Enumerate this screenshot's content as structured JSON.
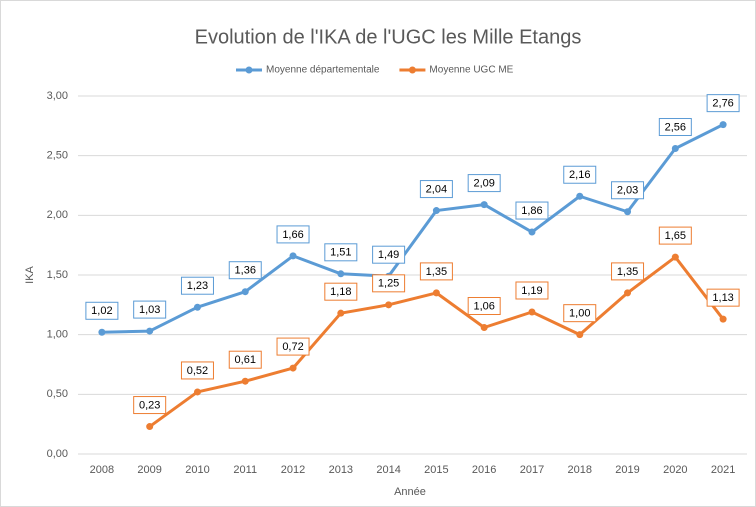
{
  "chart_data": {
    "type": "line",
    "title": "Evolution de l'IKA de l'UGC les Mille Etangs",
    "x_label": "Année",
    "y_label": "IKA",
    "categories": [
      "2008",
      "2009",
      "2010",
      "2011",
      "2012",
      "2013",
      "2014",
      "2015",
      "2016",
      "2017",
      "2018",
      "2019",
      "2020",
      "2021"
    ],
    "series": [
      {
        "name": "Moyenne départementale",
        "color": "#5b9bd5",
        "values": [
          1.02,
          1.03,
          1.23,
          1.36,
          1.66,
          1.51,
          1.49,
          2.04,
          2.09,
          1.86,
          2.16,
          2.03,
          2.56,
          2.76
        ],
        "value_labels": [
          "1,02",
          "1,03",
          "1,23",
          "1,36",
          "1,66",
          "1,51",
          "1,49",
          "2,04",
          "2,09",
          "1,86",
          "2,16",
          "2,03",
          "2,56",
          "2,76"
        ]
      },
      {
        "name": "Moyenne UGC ME",
        "color": "#ed7d31",
        "values": [
          null,
          0.23,
          0.52,
          0.61,
          0.72,
          1.18,
          1.25,
          1.35,
          1.06,
          1.19,
          1.0,
          1.35,
          1.65,
          1.13
        ],
        "value_labels": [
          null,
          "0,23",
          "0,52",
          "0,61",
          "0,72",
          "1,18",
          "1,25",
          "1,35",
          "1,06",
          "1,19",
          "1,00",
          "1,35",
          "1,65",
          "1,13"
        ]
      }
    ],
    "ylim": [
      0,
      3
    ],
    "yticks": [
      {
        "value": 0,
        "label": "0,00"
      },
      {
        "value": 0.5,
        "label": "0,50"
      },
      {
        "value": 1,
        "label": "1,00"
      },
      {
        "value": 1.5,
        "label": "1,50"
      },
      {
        "value": 2,
        "label": "2,00"
      },
      {
        "value": 2.5,
        "label": "2,50"
      },
      {
        "value": 3,
        "label": "3,00"
      }
    ],
    "grid": true,
    "legend": "top"
  }
}
